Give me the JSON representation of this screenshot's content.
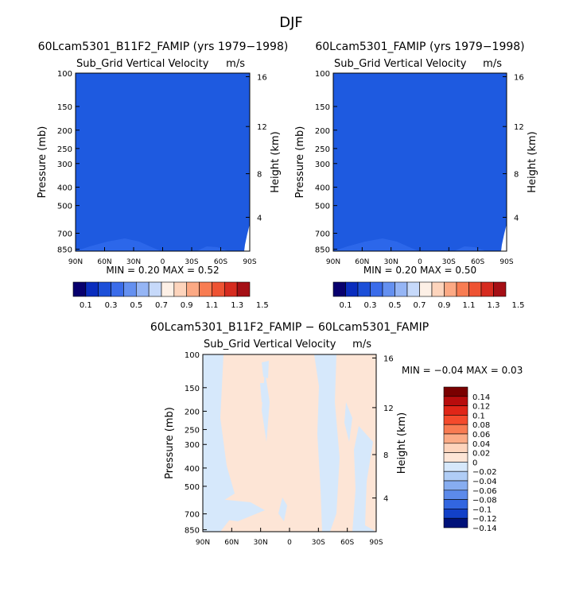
{
  "figure_title": "DJF",
  "colors": {
    "field_fill": "#1e5ae0",
    "field_dark": "#2c67ea",
    "diff_pos": "#fde5d6",
    "diff_neg": "#d6e8fb"
  },
  "chart_data": [
    {
      "type": "heatmap",
      "title": "60Lcam5301_B11F2_FAMIP (yrs 1979−1998)",
      "subtitle": "Sub_Grid Vertical Velocity",
      "units": "m/s",
      "xlabel": "",
      "ylabel": "Pressure (mb)",
      "y2label": "Height (km)",
      "x_ticks": [
        "90N",
        "60N",
        "30N",
        "0",
        "30S",
        "60S",
        "90S"
      ],
      "y_ticks": [
        "100",
        "150",
        "200",
        "250",
        "300",
        "400",
        "500",
        "700",
        "850"
      ],
      "y2_ticks": [
        "16",
        "12",
        "8",
        "4"
      ],
      "stats": "MIN =    0.20    MAX =    0.52",
      "colorbar_labels": [
        "0.1",
        "0.3",
        "0.5",
        "0.7",
        "0.9",
        "1.1",
        "1.3",
        "1.5"
      ]
    },
    {
      "type": "heatmap",
      "title": "60Lcam5301_FAMIP (yrs 1979−1998)",
      "subtitle": "Sub_Grid Vertical Velocity",
      "units": "m/s",
      "xlabel": "",
      "ylabel": "Pressure (mb)",
      "y2label": "Height (km)",
      "x_ticks": [
        "90N",
        "60N",
        "30N",
        "0",
        "30S",
        "60S",
        "90S"
      ],
      "y_ticks": [
        "100",
        "150",
        "200",
        "250",
        "300",
        "400",
        "500",
        "700",
        "850"
      ],
      "y2_ticks": [
        "16",
        "12",
        "8",
        "4"
      ],
      "stats": "MIN =    0.20    MAX =    0.50",
      "colorbar_labels": [
        "0.1",
        "0.3",
        "0.5",
        "0.7",
        "0.9",
        "1.1",
        "1.3",
        "1.5"
      ]
    },
    {
      "type": "heatmap",
      "title": "60Lcam5301_B11F2_FAMIP − 60Lcam5301_FAMIP",
      "subtitle": "Sub_Grid Vertical Velocity",
      "units": "m/s",
      "xlabel": "",
      "ylabel": "Pressure (mb)",
      "y2label": "Height (km)",
      "x_ticks": [
        "90N",
        "60N",
        "30N",
        "0",
        "30S",
        "60S",
        "90S"
      ],
      "y_ticks": [
        "100",
        "150",
        "200",
        "250",
        "300",
        "400",
        "500",
        "700",
        "850"
      ],
      "y2_ticks": [
        "16",
        "12",
        "8",
        "4"
      ],
      "stats": "MIN =   −0.04    MAX =    0.03",
      "colorbar_labels": [
        "0.14",
        "0.12",
        "0.1",
        "0.08",
        "0.06",
        "0.04",
        "0.02",
        "0",
        "−0.02",
        "−0.04",
        "−0.06",
        "−0.08",
        "−0.1",
        "−0.12",
        "−0.14"
      ]
    }
  ],
  "colorbar_main": [
    "#08006e",
    "#0a2dbe",
    "#1c4fd8",
    "#3a6cea",
    "#6490f0",
    "#95b5f5",
    "#c6d9fa",
    "#fdf0e6",
    "#fdd4bc",
    "#fca984",
    "#f87c52",
    "#ee5333",
    "#d62b1f",
    "#a50f15"
  ],
  "colorbar_diff": [
    "#7a0000",
    "#b80d0d",
    "#e02618",
    "#f44a2c",
    "#f87b52",
    "#fbab86",
    "#fdd4bc",
    "#fde5d6",
    "#d6e8fb",
    "#b0cdf6",
    "#87adf0",
    "#5c8aea",
    "#3266e0",
    "#1240c8",
    "#00127a"
  ]
}
